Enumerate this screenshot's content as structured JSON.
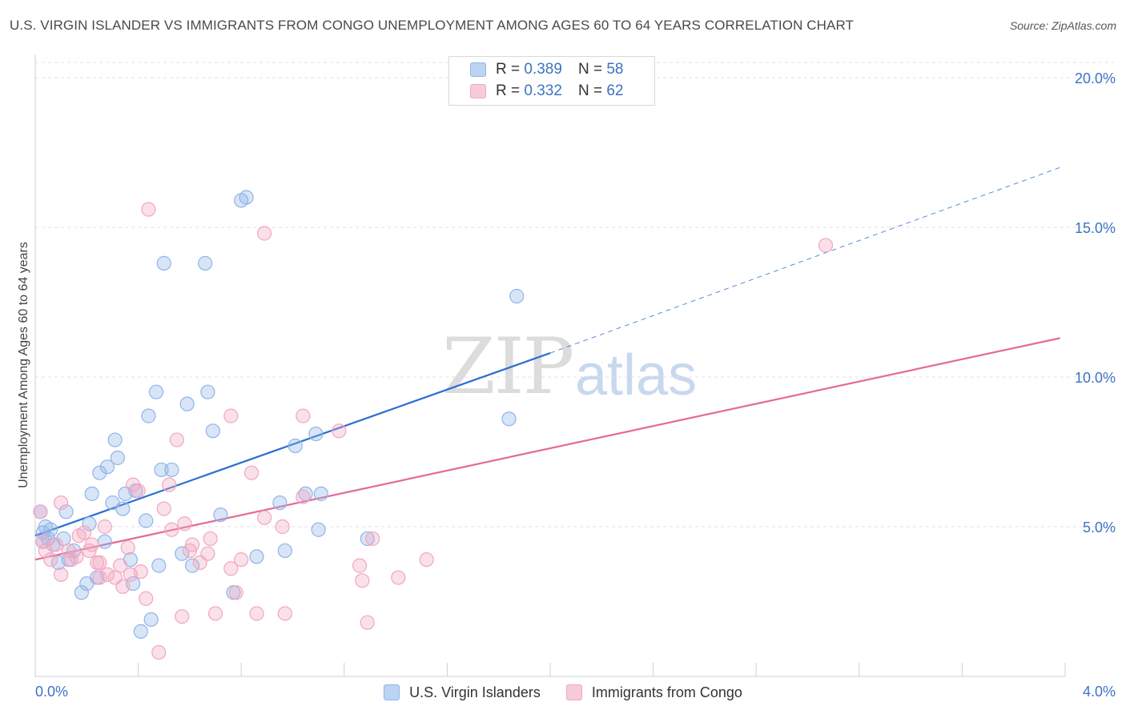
{
  "header": {
    "title": "U.S. VIRGIN ISLANDER VS IMMIGRANTS FROM CONGO UNEMPLOYMENT AMONG AGES 60 TO 64 YEARS CORRELATION CHART",
    "source": "Source: ZipAtlas.com"
  },
  "watermark": {
    "part1": "ZIP",
    "part2": "atlas"
  },
  "legend_top": {
    "rows": [
      {
        "r_label": "R =",
        "r_value": "0.389",
        "n_label": "N =",
        "n_value": "58"
      },
      {
        "r_label": "R =",
        "r_value": "0.332",
        "n_label": "N =",
        "n_value": "62"
      }
    ]
  },
  "chart_data": {
    "type": "scatter",
    "title": "U.S. VIRGIN ISLANDER VS IMMIGRANTS FROM CONGO UNEMPLOYMENT AMONG AGES 60 TO 64 YEARS CORRELATION CHART",
    "xlabel": "",
    "ylabel": "Unemployment Among Ages 60 to 64 years",
    "xlim": [
      0,
      4.0
    ],
    "ylim": [
      0,
      20.0
    ],
    "x_tick_labels": [
      "0.0%",
      "4.0%"
    ],
    "y_tick_labels": [
      "5.0%",
      "10.0%",
      "15.0%",
      "20.0%"
    ],
    "y_tick_values": [
      5,
      10,
      15,
      20
    ],
    "x_minor_ticks": [
      0.4,
      0.8,
      1.2,
      1.6,
      2.0,
      2.4,
      2.8,
      3.2,
      3.6,
      4.0
    ],
    "colors": {
      "blue": "#8fb4e8",
      "blue_line": "#2a6fd0",
      "pink": "#f2a6bf",
      "pink_line": "#e46a95"
    },
    "series": [
      {
        "name": "U.S. Virgin Islanders",
        "color": "blue",
        "r": 0.389,
        "n": 58,
        "trend": {
          "x0": 0.0,
          "y0": 4.7,
          "x1": 2.0,
          "y1": 10.8,
          "dash_x1": 3.98,
          "dash_y1": 17.0
        },
        "points": [
          [
            0.02,
            5.5
          ],
          [
            0.03,
            4.8
          ],
          [
            0.04,
            5.0
          ],
          [
            0.05,
            4.6
          ],
          [
            0.06,
            4.9
          ],
          [
            0.07,
            4.4
          ],
          [
            0.09,
            3.8
          ],
          [
            0.11,
            4.6
          ],
          [
            0.12,
            5.5
          ],
          [
            0.13,
            3.9
          ],
          [
            0.15,
            4.2
          ],
          [
            0.18,
            2.8
          ],
          [
            0.2,
            3.1
          ],
          [
            0.21,
            5.1
          ],
          [
            0.22,
            6.1
          ],
          [
            0.24,
            3.3
          ],
          [
            0.25,
            6.8
          ],
          [
            0.27,
            4.5
          ],
          [
            0.28,
            7.0
          ],
          [
            0.3,
            5.8
          ],
          [
            0.31,
            7.9
          ],
          [
            0.32,
            7.3
          ],
          [
            0.34,
            5.6
          ],
          [
            0.35,
            6.1
          ],
          [
            0.37,
            3.9
          ],
          [
            0.38,
            3.1
          ],
          [
            0.39,
            6.2
          ],
          [
            0.41,
            1.5
          ],
          [
            0.43,
            5.2
          ],
          [
            0.44,
            8.7
          ],
          [
            0.45,
            1.9
          ],
          [
            0.47,
            9.5
          ],
          [
            0.48,
            3.7
          ],
          [
            0.49,
            6.9
          ],
          [
            0.5,
            13.8
          ],
          [
            0.53,
            6.9
          ],
          [
            0.57,
            4.1
          ],
          [
            0.59,
            9.1
          ],
          [
            0.61,
            3.7
          ],
          [
            0.66,
            13.8
          ],
          [
            0.67,
            9.5
          ],
          [
            0.69,
            8.2
          ],
          [
            0.72,
            5.4
          ],
          [
            0.77,
            2.8
          ],
          [
            0.8,
            15.9
          ],
          [
            0.82,
            16.0
          ],
          [
            0.86,
            4.0
          ],
          [
            0.95,
            5.8
          ],
          [
            0.97,
            4.2
          ],
          [
            1.01,
            7.7
          ],
          [
            1.05,
            6.1
          ],
          [
            1.09,
            8.1
          ],
          [
            1.1,
            4.9
          ],
          [
            1.11,
            6.1
          ],
          [
            1.29,
            4.6
          ],
          [
            1.84,
            8.6
          ],
          [
            1.87,
            12.7
          ],
          [
            0.03,
            4.5
          ]
        ]
      },
      {
        "name": "Immigrants from Congo",
        "color": "pink",
        "r": 0.332,
        "n": 62,
        "trend": {
          "x0": 0.0,
          "y0": 3.9,
          "x1": 3.98,
          "y1": 11.3
        },
        "points": [
          [
            0.02,
            5.5
          ],
          [
            0.03,
            4.5
          ],
          [
            0.04,
            4.2
          ],
          [
            0.06,
            3.9
          ],
          [
            0.08,
            4.4
          ],
          [
            0.1,
            3.4
          ],
          [
            0.1,
            5.8
          ],
          [
            0.13,
            4.2
          ],
          [
            0.14,
            3.9
          ],
          [
            0.16,
            4.0
          ],
          [
            0.17,
            4.7
          ],
          [
            0.19,
            4.8
          ],
          [
            0.21,
            4.2
          ],
          [
            0.22,
            4.4
          ],
          [
            0.24,
            3.8
          ],
          [
            0.25,
            3.3
          ],
          [
            0.27,
            5.0
          ],
          [
            0.28,
            3.4
          ],
          [
            0.31,
            3.3
          ],
          [
            0.33,
            3.7
          ],
          [
            0.34,
            3.0
          ],
          [
            0.36,
            4.3
          ],
          [
            0.37,
            3.4
          ],
          [
            0.38,
            6.4
          ],
          [
            0.4,
            6.2
          ],
          [
            0.41,
            3.5
          ],
          [
            0.43,
            2.6
          ],
          [
            0.44,
            15.6
          ],
          [
            0.48,
            0.8
          ],
          [
            0.5,
            5.6
          ],
          [
            0.52,
            6.4
          ],
          [
            0.53,
            4.9
          ],
          [
            0.55,
            7.9
          ],
          [
            0.57,
            2.0
          ],
          [
            0.58,
            5.1
          ],
          [
            0.6,
            4.2
          ],
          [
            0.61,
            4.4
          ],
          [
            0.64,
            3.8
          ],
          [
            0.67,
            4.1
          ],
          [
            0.68,
            4.6
          ],
          [
            0.7,
            2.1
          ],
          [
            0.76,
            8.7
          ],
          [
            0.76,
            3.6
          ],
          [
            0.78,
            2.8
          ],
          [
            0.8,
            3.9
          ],
          [
            0.84,
            6.8
          ],
          [
            0.86,
            2.1
          ],
          [
            0.89,
            5.3
          ],
          [
            0.89,
            14.8
          ],
          [
            0.96,
            5.0
          ],
          [
            0.97,
            2.1
          ],
          [
            1.04,
            8.7
          ],
          [
            1.04,
            6.0
          ],
          [
            1.18,
            8.2
          ],
          [
            1.26,
            3.7
          ],
          [
            1.27,
            3.2
          ],
          [
            1.29,
            1.8
          ],
          [
            1.31,
            4.6
          ],
          [
            1.41,
            3.3
          ],
          [
            1.52,
            3.9
          ],
          [
            3.07,
            14.4
          ],
          [
            0.25,
            3.8
          ]
        ]
      }
    ]
  },
  "legend_bottom": {
    "items": [
      {
        "label": "U.S. Virgin Islanders"
      },
      {
        "label": "Immigrants from Congo"
      }
    ]
  }
}
